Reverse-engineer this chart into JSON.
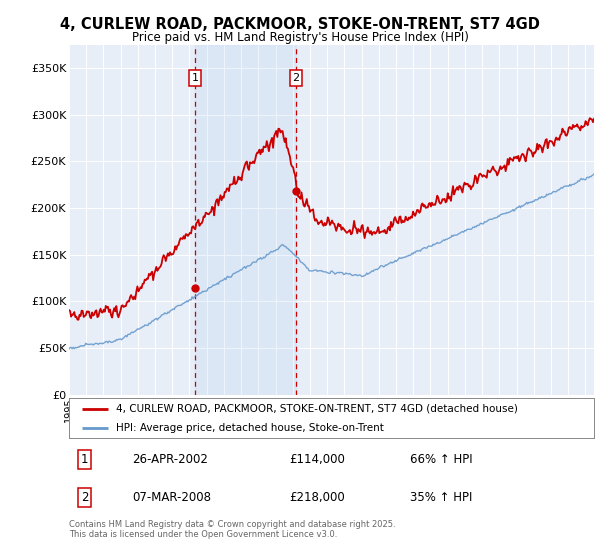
{
  "title": "4, CURLEW ROAD, PACKMOOR, STOKE-ON-TRENT, ST7 4GD",
  "subtitle": "Price paid vs. HM Land Registry's House Price Index (HPI)",
  "legend_property": "4, CURLEW ROAD, PACKMOOR, STOKE-ON-TRENT, ST7 4GD (detached house)",
  "legend_hpi": "HPI: Average price, detached house, Stoke-on-Trent",
  "sale1_date": "26-APR-2002",
  "sale1_price": 114000,
  "sale1_label": "66% ↑ HPI",
  "sale2_date": "07-MAR-2008",
  "sale2_price": 218000,
  "sale2_label": "35% ↑ HPI",
  "footer": "Contains HM Land Registry data © Crown copyright and database right 2025.\nThis data is licensed under the Open Government Licence v3.0.",
  "background_color": "#ffffff",
  "plot_bg_color": "#e8eef8",
  "hpi_color": "#6699cc",
  "property_color": "#cc0000",
  "sale1_x": 2002.32,
  "sale2_x": 2008.18,
  "ylim": [
    0,
    375000
  ],
  "yticks": [
    0,
    50000,
    100000,
    150000,
    200000,
    250000,
    300000,
    350000
  ],
  "xmin": 1995,
  "xmax": 2025.5
}
